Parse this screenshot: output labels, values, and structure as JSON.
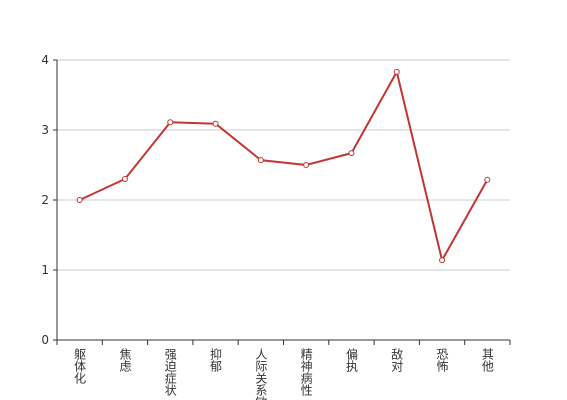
{
  "chart_data": {
    "type": "line",
    "categories": [
      "躯体化",
      "焦虑",
      "强迫症状",
      "抑郁",
      "人际关系敏感",
      "精神病性",
      "偏执",
      "敌对",
      "恐怖",
      "其他"
    ],
    "values": [
      2.0,
      2.3,
      3.11,
      3.09,
      2.57,
      2.5,
      2.67,
      3.83,
      1.14,
      2.29
    ],
    "color": "#c23531",
    "ylim": [
      0,
      4
    ],
    "yticks": [
      0,
      1,
      2,
      3,
      4
    ],
    "grid": true
  }
}
